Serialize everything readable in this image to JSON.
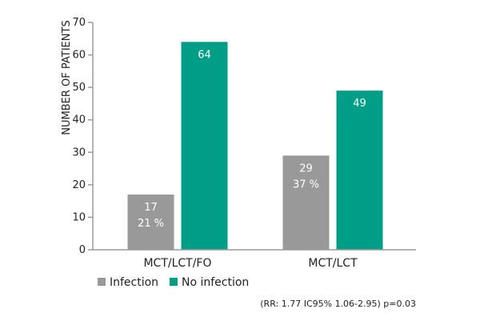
{
  "chart_data": {
    "type": "bar",
    "ylabel": "NUMBER OF PATIENTS",
    "ylim": [
      0,
      70
    ],
    "yticks": [
      0,
      10,
      20,
      30,
      40,
      50,
      60,
      70
    ],
    "categories": [
      "MCT/LCT/FO",
      "MCT/LCT"
    ],
    "series": [
      {
        "name": "Infection",
        "color": "#999999",
        "values": [
          17,
          29
        ],
        "labels": [
          [
            "17",
            "21 %"
          ],
          [
            "29",
            "37 %"
          ]
        ]
      },
      {
        "name": "No infection",
        "color": "#009e86",
        "values": [
          64,
          49
        ],
        "labels": [
          [
            "64"
          ],
          [
            "49"
          ]
        ]
      }
    ],
    "legend_position": "bottom-left",
    "grid": false,
    "footnote": "(RR: 1.77 IC95% 1.06-2.95)  p=0.03"
  }
}
